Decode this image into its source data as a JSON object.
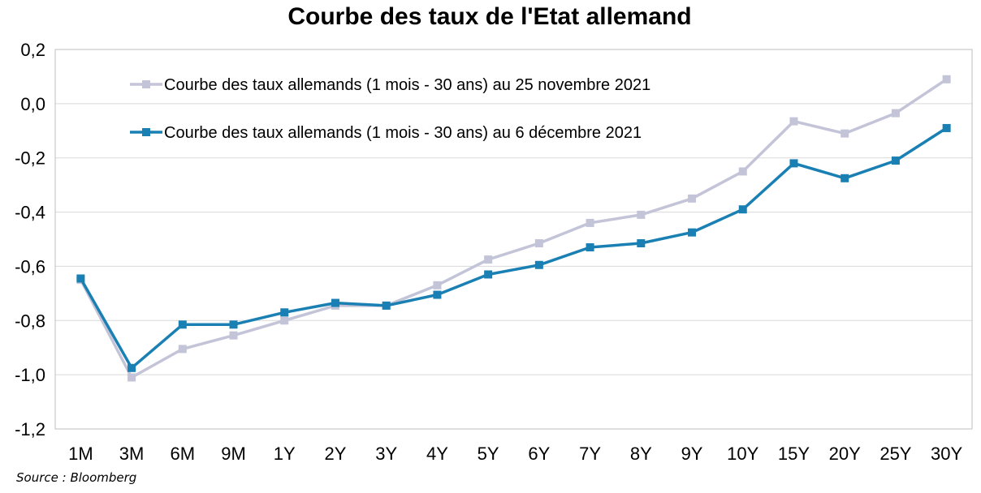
{
  "chart_data": {
    "type": "line",
    "title": "Courbe des taux de l'Etat allemand",
    "xlabel": "",
    "ylabel": "",
    "categories": [
      "1M",
      "3M",
      "6M",
      "9M",
      "1Y",
      "2Y",
      "3Y",
      "4Y",
      "5Y",
      "6Y",
      "7Y",
      "8Y",
      "9Y",
      "10Y",
      "15Y",
      "20Y",
      "25Y",
      "30Y"
    ],
    "ylim": [
      -1.2,
      0.2
    ],
    "yticks": [
      0.2,
      0.0,
      -0.2,
      -0.4,
      -0.6,
      -0.8,
      -1.0,
      -1.2
    ],
    "ytick_labels": [
      "0,2",
      "0,0",
      "-0,2",
      "-0,4",
      "-0,6",
      "-0,8",
      "-1,0",
      "-1,2"
    ],
    "grid": true,
    "legend_position": "top-left",
    "series": [
      {
        "name": "Courbe des taux allemands (1 mois - 30 ans) au 25 novembre 2021",
        "color": "#c3c4d8",
        "values": [
          -0.65,
          -1.01,
          -0.905,
          -0.855,
          -0.8,
          -0.745,
          -0.745,
          -0.67,
          -0.575,
          -0.515,
          -0.44,
          -0.41,
          -0.35,
          -0.25,
          -0.065,
          -0.11,
          -0.035,
          0.09
        ]
      },
      {
        "name": "Courbe des taux allemands (1 mois - 30 ans) au 6 décembre 2021",
        "color": "#1a80b4",
        "values": [
          -0.645,
          -0.975,
          -0.815,
          -0.815,
          -0.77,
          -0.735,
          -0.745,
          -0.705,
          -0.63,
          -0.595,
          -0.53,
          -0.515,
          -0.475,
          -0.39,
          -0.22,
          -0.275,
          -0.21,
          -0.09
        ]
      }
    ]
  },
  "source": "Source : Bloomberg"
}
